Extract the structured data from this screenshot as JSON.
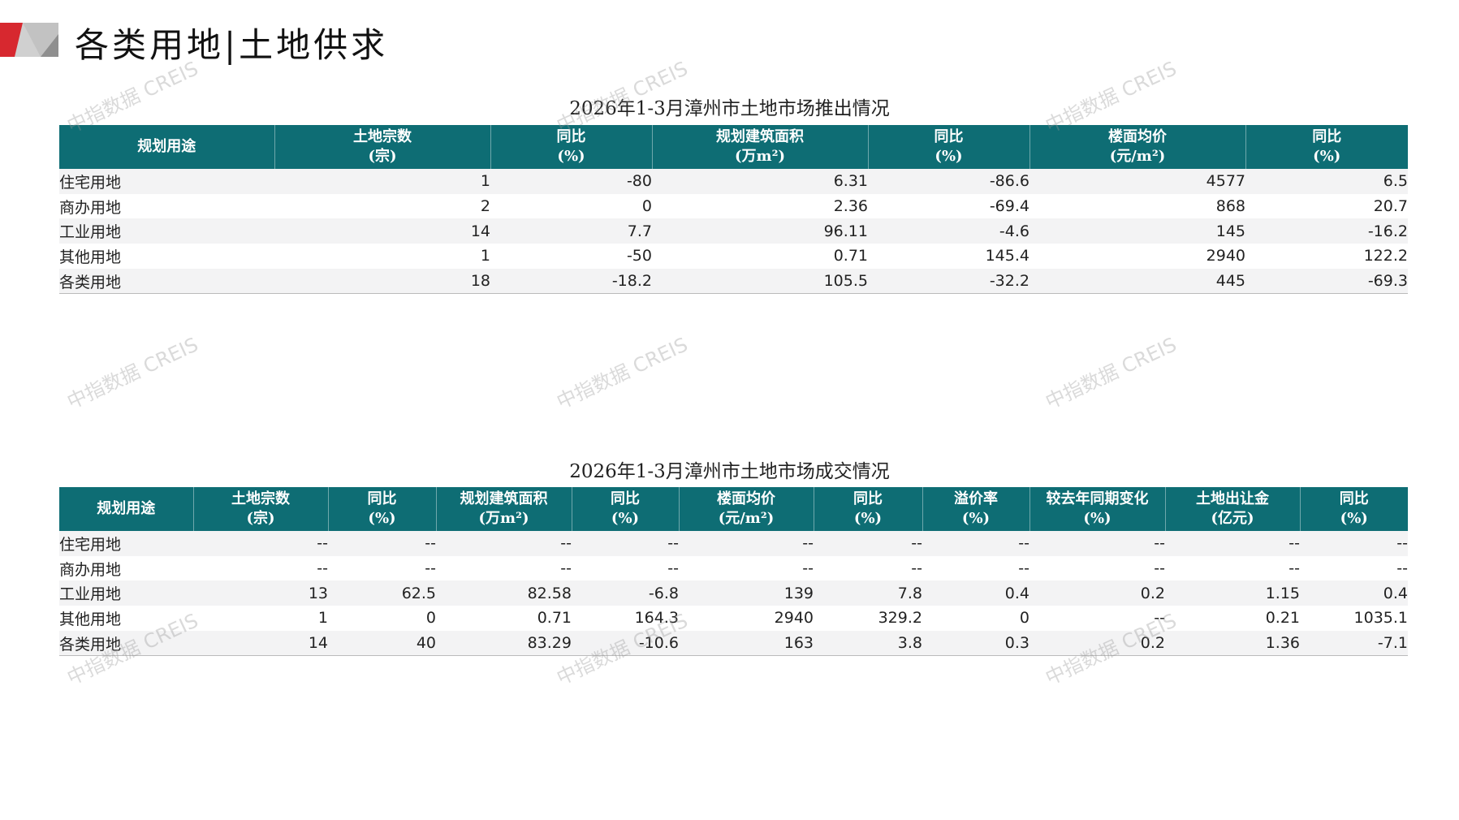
{
  "header": {
    "title": "各类用地|土地供求"
  },
  "watermark": "中指数据 CREIS",
  "supply": {
    "title": "2026年1-3月漳州市土地市场推出情况",
    "columns": [
      [
        "规划用途",
        ""
      ],
      [
        "土地宗数",
        "(宗)"
      ],
      [
        "同比",
        "(%)"
      ],
      [
        "规划建筑面积",
        "(万m²)"
      ],
      [
        "同比",
        "(%)"
      ],
      [
        "楼面均价",
        "(元/m²)"
      ],
      [
        "同比",
        "(%)"
      ]
    ],
    "rows": [
      [
        "住宅用地",
        "1",
        "-80",
        "6.31",
        "-86.6",
        "4577",
        "6.5"
      ],
      [
        "商办用地",
        "2",
        "0",
        "2.36",
        "-69.4",
        "868",
        "20.7"
      ],
      [
        "工业用地",
        "14",
        "7.7",
        "96.11",
        "-4.6",
        "145",
        "-16.2"
      ],
      [
        "其他用地",
        "1",
        "-50",
        "0.71",
        "145.4",
        "2940",
        "122.2"
      ],
      [
        "各类用地",
        "18",
        "-18.2",
        "105.5",
        "-32.2",
        "445",
        "-69.3"
      ]
    ]
  },
  "deals": {
    "title": "2026年1-3月漳州市土地市场成交情况",
    "columns": [
      [
        "规划用途",
        ""
      ],
      [
        "土地宗数",
        "(宗)"
      ],
      [
        "同比",
        "(%)"
      ],
      [
        "规划建筑面积",
        "(万m²)"
      ],
      [
        "同比",
        "(%)"
      ],
      [
        "楼面均价",
        "(元/m²)"
      ],
      [
        "同比",
        "(%)"
      ],
      [
        "溢价率",
        "(%)"
      ],
      [
        "较去年同期变化",
        "(%)"
      ],
      [
        "土地出让金",
        "(亿元)"
      ],
      [
        "同比",
        "(%)"
      ]
    ],
    "rows": [
      [
        "住宅用地",
        "--",
        "--",
        "--",
        "--",
        "--",
        "--",
        "--",
        "--",
        "--",
        "--"
      ],
      [
        "商办用地",
        "--",
        "--",
        "--",
        "--",
        "--",
        "--",
        "--",
        "--",
        "--",
        "--"
      ],
      [
        "工业用地",
        "13",
        "62.5",
        "82.58",
        "-6.8",
        "139",
        "7.8",
        "0.4",
        "0.2",
        "1.15",
        "0.4"
      ],
      [
        "其他用地",
        "1",
        "0",
        "0.71",
        "164.3",
        "2940",
        "329.2",
        "0",
        "--",
        "0.21",
        "1035.1"
      ],
      [
        "各类用地",
        "14",
        "40",
        "83.29",
        "-10.6",
        "163",
        "3.8",
        "0.3",
        "0.2",
        "1.36",
        "-7.1"
      ]
    ]
  },
  "colors": {
    "header_bg": "#0e6d74",
    "logo_red": "#d7282f",
    "logo_gray": "#c8c8c8"
  }
}
